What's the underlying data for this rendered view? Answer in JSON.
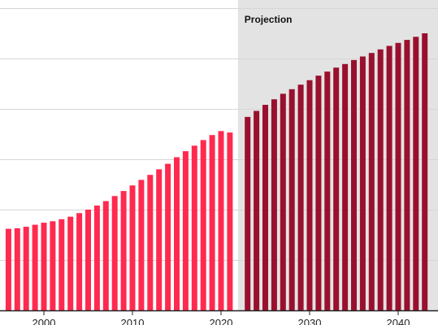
{
  "chart_data": {
    "type": "bar",
    "title": "",
    "xlabel": "",
    "ylabel": "",
    "x_tick_labels": [
      "2000",
      "2010",
      "2020",
      "2030",
      "2040"
    ],
    "projection_label": "Projection",
    "projection_start_year": 2022,
    "grid": "horizontal",
    "y_scale": "unlabeled",
    "ylim": [
      0,
      6
    ],
    "colors": {
      "historical": "#ff2a4f",
      "projection": "#99102e",
      "projection_band": "#e3e3e3",
      "grid": "#d6d6d6",
      "axis": "#222222"
    },
    "series": [
      {
        "segment": "historical",
        "x": [
          1996,
          1997,
          1998,
          1999,
          2000,
          2001,
          2002,
          2003,
          2004,
          2005,
          2006,
          2007,
          2008,
          2009,
          2010,
          2011,
          2012,
          2013,
          2014,
          2015,
          2016,
          2017,
          2018,
          2019,
          2020,
          2021
        ],
        "values": [
          1.62,
          1.63,
          1.66,
          1.7,
          1.74,
          1.77,
          1.81,
          1.86,
          1.93,
          2.0,
          2.08,
          2.17,
          2.27,
          2.37,
          2.48,
          2.59,
          2.69,
          2.8,
          2.91,
          3.04,
          3.16,
          3.27,
          3.38,
          3.48,
          3.56,
          3.53
        ]
      },
      {
        "segment": "projection",
        "x": [
          2023,
          2024,
          2025,
          2026,
          2027,
          2028,
          2029,
          2030,
          2031,
          2032,
          2033,
          2034,
          2035,
          2036,
          2037,
          2038,
          2039,
          2040,
          2041,
          2042,
          2043
        ],
        "values": [
          3.84,
          3.96,
          4.08,
          4.19,
          4.3,
          4.39,
          4.48,
          4.57,
          4.66,
          4.74,
          4.82,
          4.89,
          4.97,
          5.04,
          5.11,
          5.18,
          5.25,
          5.31,
          5.37,
          5.43,
          5.5
        ]
      }
    ]
  }
}
